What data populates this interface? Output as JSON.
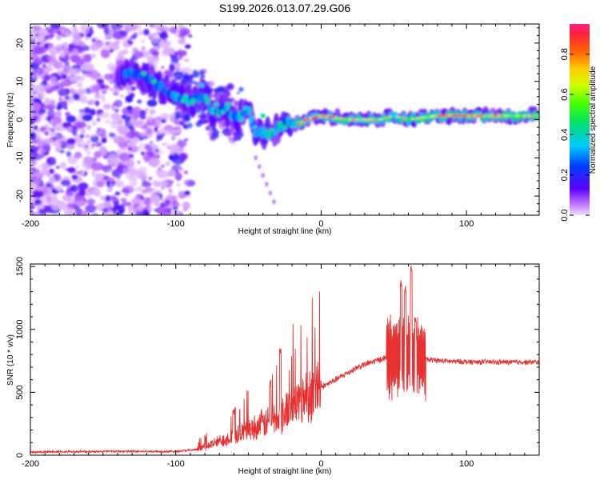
{
  "title": "S199.2026.013.07.29.G06",
  "colors": {
    "trace": "#e83030",
    "frame": "#000000",
    "speckle": "#8a2be2"
  },
  "chart_data": [
    {
      "name": "spectrogram",
      "type": "heatmap",
      "xlabel": "Height of straight line (km)",
      "ylabel": "Frequency (Hz)",
      "xlim": [
        -200,
        150
      ],
      "ylim": [
        -25,
        25
      ],
      "xticks": [
        -200,
        -100,
        0,
        100
      ],
      "yticks": [
        -20,
        -10,
        0,
        10,
        20
      ],
      "colorbar": {
        "label": "Normalized spectral amplitude",
        "range": [
          0,
          0.95
        ],
        "ticks": [
          0.0,
          0.2,
          0.4,
          0.6,
          0.8
        ],
        "tick_labels": [
          "0.0",
          "0.2",
          "0.4",
          "0.6",
          "0.8"
        ]
      },
      "ridge": [
        {
          "x": -130,
          "f": 12
        },
        {
          "x": -120,
          "f": 11
        },
        {
          "x": -100,
          "f": 6
        },
        {
          "x": -90,
          "f": 5
        },
        {
          "x": -80,
          "f": 6
        },
        {
          "x": -75,
          "f": 2
        },
        {
          "x": -65,
          "f": 3
        },
        {
          "x": -58,
          "f": 0
        },
        {
          "x": -50,
          "f": 3
        },
        {
          "x": -45,
          "f": -3
        },
        {
          "x": -35,
          "f": -4
        },
        {
          "x": -25,
          "f": -1
        },
        {
          "x": -15,
          "f": -1
        },
        {
          "x": -10,
          "f": 0
        },
        {
          "x": 0,
          "f": 1
        },
        {
          "x": 20,
          "f": 0
        },
        {
          "x": 40,
          "f": 0
        },
        {
          "x": 50,
          "f": 1
        },
        {
          "x": 60,
          "f": 0
        },
        {
          "x": 80,
          "f": 1
        },
        {
          "x": 100,
          "f": 1
        },
        {
          "x": 150,
          "f": 1
        }
      ]
    },
    {
      "name": "snr",
      "type": "line",
      "xlabel": "Height of straight line (km)",
      "ylabel": "SNR (10 * v/v)",
      "xlim": [
        -200,
        150
      ],
      "ylim": [
        0,
        1520
      ],
      "xticks": [
        -200,
        -100,
        0,
        100
      ],
      "yticks": [
        0,
        500,
        1000,
        1500
      ],
      "envelope": [
        {
          "x": -200,
          "y": 25
        },
        {
          "x": -150,
          "y": 30
        },
        {
          "x": -100,
          "y": 30
        },
        {
          "x": -85,
          "y": 45
        },
        {
          "x": -70,
          "y": 110
        },
        {
          "x": -50,
          "y": 200
        },
        {
          "x": -30,
          "y": 300
        },
        {
          "x": -10,
          "y": 480
        },
        {
          "x": 10,
          "y": 600
        },
        {
          "x": 25,
          "y": 700
        },
        {
          "x": 40,
          "y": 760
        },
        {
          "x": 48,
          "y": 780
        },
        {
          "x": 60,
          "y": 800
        },
        {
          "x": 72,
          "y": 760
        },
        {
          "x": 90,
          "y": 745
        },
        {
          "x": 120,
          "y": 740
        },
        {
          "x": 150,
          "y": 740
        }
      ],
      "bursts": [
        {
          "x": -60,
          "y": 380
        },
        {
          "x": -28,
          "y": 850
        },
        {
          "x": -35,
          "y": 600
        },
        {
          "x": 55,
          "y": 1400
        },
        {
          "x": 58,
          "y": 1350
        },
        {
          "x": 62,
          "y": 1520
        },
        {
          "x": 65,
          "y": 1100
        }
      ]
    }
  ]
}
